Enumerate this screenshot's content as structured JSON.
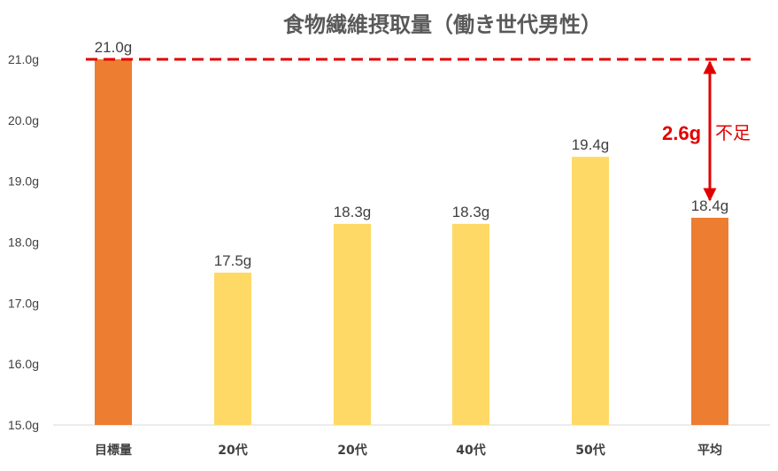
{
  "chart_data": {
    "type": "bar",
    "title": "食物繊維摂取量（働き世代男性）",
    "categories": [
      "目標量",
      "20代",
      "20代",
      "40代",
      "50代",
      "平均"
    ],
    "values": [
      21.0,
      17.5,
      18.3,
      18.3,
      19.4,
      18.4
    ],
    "value_labels": [
      "21.0g",
      "17.5g",
      "18.3g",
      "18.3g",
      "19.4g",
      "18.4g"
    ],
    "bar_colors": [
      "#ed7d31",
      "#ffd966",
      "#ffd966",
      "#ffd966",
      "#ffd966",
      "#ed7d31"
    ],
    "ylim": [
      15.0,
      21.0
    ],
    "yticks": [
      15.0,
      16.0,
      17.0,
      18.0,
      19.0,
      20.0,
      21.0
    ],
    "ytick_labels": [
      "15.0g",
      "16.0g",
      "17.0g",
      "18.0g",
      "19.0g",
      "20.0g",
      "21.0g"
    ],
    "xlabel": "",
    "ylabel": "",
    "grid": false,
    "reference_line": {
      "value": 21.0,
      "style": "dashed",
      "color": "#e00000"
    },
    "annotation": {
      "value_text": "2.6g",
      "text": "不足",
      "color": "#e00000",
      "from": 21.0,
      "to": 18.4
    }
  }
}
